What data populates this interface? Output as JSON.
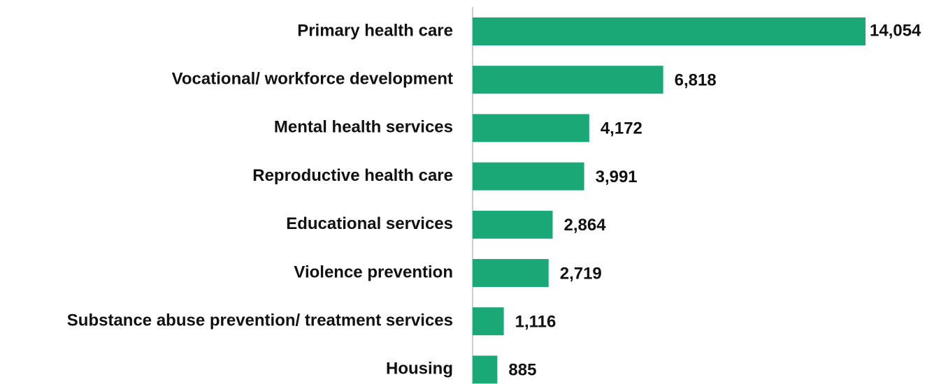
{
  "chart_data": {
    "type": "hbar",
    "categories": [
      "Primary health care",
      "Vocational/ workforce development",
      "Mental health services",
      "Reproductive health care",
      "Educational services",
      "Violence prevention",
      "Substance abuse prevention/ treatment services",
      "Housing"
    ],
    "values": [
      14054,
      6818,
      4172,
      3991,
      2864,
      2719,
      1116,
      885
    ],
    "value_labels": [
      "14,054",
      "6,818",
      "4,172",
      "3,991",
      "2,864",
      "2,719",
      "1,116",
      "885"
    ],
    "color": "#1aa876"
  }
}
